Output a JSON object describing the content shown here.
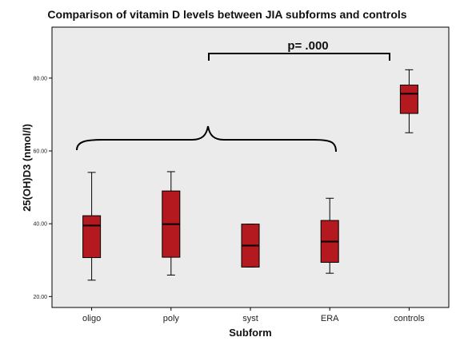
{
  "chart_data": {
    "type": "boxplot",
    "title": "Comparison of vitamin D levels between JIA subforms and controls",
    "xlabel": "Subform",
    "ylabel": "25(OH)D3 (nmol/l)",
    "ylim": [
      17,
      94
    ],
    "yticks": [
      "20.00",
      "40.00",
      "60.00",
      "80.00"
    ],
    "categories": [
      "oligo",
      "poly",
      "syst",
      "ERA",
      "controls"
    ],
    "boxes": [
      {
        "min": 24.5,
        "q1": 30.7,
        "median": 39.5,
        "q3": 42.2,
        "max": 54.1
      },
      {
        "min": 25.9,
        "q1": 30.8,
        "median": 39.9,
        "q3": 49.0,
        "max": 54.3
      },
      {
        "min": 28.1,
        "q1": 28.1,
        "median": 34.0,
        "q3": 39.9,
        "max": 39.9
      },
      {
        "min": 26.4,
        "q1": 29.4,
        "median": 35.1,
        "q3": 40.9,
        "max": 47.0
      },
      {
        "min": 65.0,
        "q1": 70.3,
        "median": 75.7,
        "q3": 78.1,
        "max": 82.3
      }
    ],
    "annotation": "p= .000",
    "grid": false,
    "box_color": "#b3191e",
    "background_color": "#ebebeb"
  }
}
